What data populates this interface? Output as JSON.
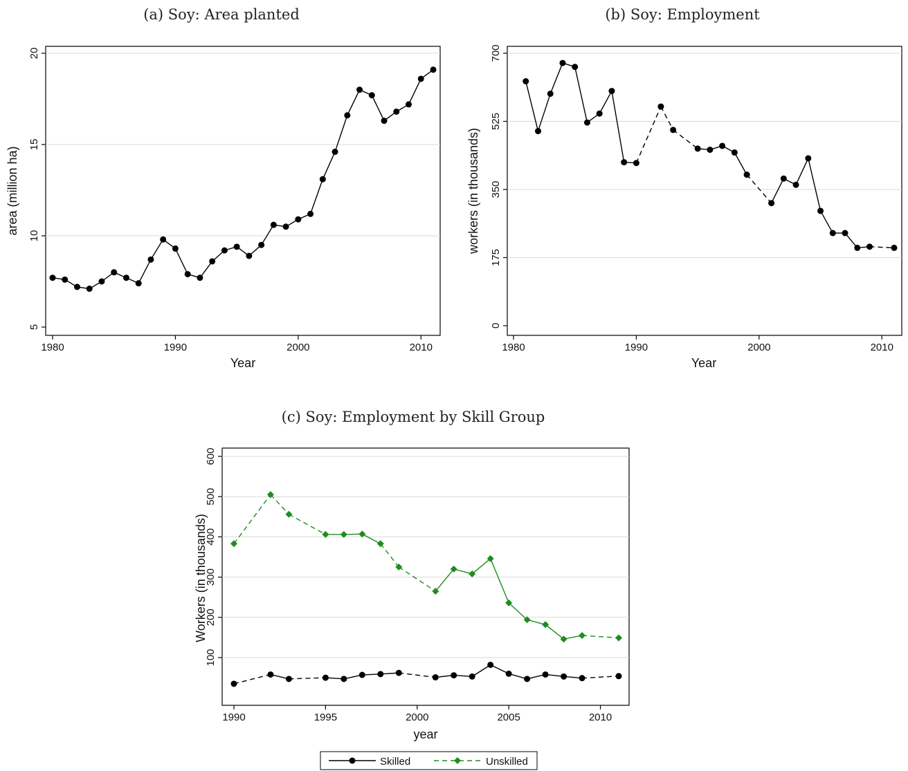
{
  "chart_data": [
    {
      "id": "a",
      "type": "line",
      "title": "(a) Soy: Area planted",
      "xlabel": "Year",
      "ylabel": "area (million ha)",
      "xlim": [
        1980,
        2011
      ],
      "ylim": [
        5,
        20
      ],
      "xticks": [
        1980,
        1990,
        2000,
        2010
      ],
      "yticks": [
        5,
        10,
        15,
        20
      ],
      "grid": true,
      "series": [
        {
          "color": "#000000",
          "marker": "circle",
          "x": [
            1980,
            1981,
            1982,
            1983,
            1984,
            1985,
            1986,
            1987,
            1988,
            1989,
            1990,
            1991,
            1992,
            1993,
            1994,
            1995,
            1996,
            1997,
            1998,
            1999,
            2000,
            2001,
            2002,
            2003,
            2004,
            2005,
            2006,
            2007,
            2008,
            2009,
            2010,
            2011
          ],
          "y": [
            7.7,
            7.6,
            7.2,
            7.1,
            7.5,
            8.0,
            7.7,
            7.4,
            8.7,
            9.8,
            9.3,
            7.9,
            7.7,
            8.6,
            9.2,
            9.4,
            8.9,
            9.5,
            10.6,
            10.5,
            10.9,
            11.2,
            13.1,
            14.6,
            16.6,
            18.0,
            17.7,
            16.3,
            16.8,
            17.2,
            18.6,
            19.1
          ],
          "dashed_segments": []
        }
      ]
    },
    {
      "id": "b",
      "type": "line",
      "title": "(b) Soy: Employment",
      "xlabel": "Year",
      "ylabel": "workers (in thousands)",
      "xlim": [
        1980,
        2011
      ],
      "ylim": [
        0,
        700
      ],
      "xticks": [
        1980,
        1990,
        2000,
        2010
      ],
      "yticks": [
        0,
        175,
        350,
        525,
        700
      ],
      "grid": true,
      "series": [
        {
          "color": "#000000",
          "marker": "circle",
          "x": [
            1981,
            1982,
            1983,
            1984,
            1985,
            1986,
            1987,
            1988,
            1989,
            1990,
            1992,
            1993,
            1995,
            1996,
            1997,
            1998,
            1999,
            2001,
            2002,
            2003,
            2004,
            2005,
            2006,
            2007,
            2008,
            2009,
            2011
          ],
          "y": [
            628,
            500,
            596,
            675,
            665,
            522,
            545,
            603,
            420,
            418,
            563,
            503,
            455,
            452,
            462,
            445,
            388,
            315,
            378,
            362,
            430,
            295,
            238,
            238,
            200,
            203,
            200
          ],
          "dashed_segments": [
            [
              1990,
              1992
            ],
            [
              1992,
              1993
            ],
            [
              1993,
              1995
            ],
            [
              1999,
              2001
            ],
            [
              2009,
              2011
            ]
          ]
        }
      ]
    },
    {
      "id": "c",
      "type": "line",
      "title": "(c) Soy: Employment by Skill Group",
      "xlabel": "year",
      "ylabel": "Workers (in thousands)",
      "xlim": [
        1990,
        2011
      ],
      "ylim": [
        0,
        620
      ],
      "xticks": [
        1990,
        1995,
        2000,
        2005,
        2010
      ],
      "yticks": [
        100,
        200,
        300,
        400,
        500,
        600
      ],
      "grid": true,
      "legend": "bottom",
      "series": [
        {
          "name": "Skilled",
          "color": "#000000",
          "marker": "circle",
          "x": [
            1990,
            1992,
            1993,
            1995,
            1996,
            1997,
            1998,
            1999,
            2001,
            2002,
            2003,
            2004,
            2005,
            2006,
            2007,
            2008,
            2009,
            2011
          ],
          "y": [
            35,
            58,
            47,
            50,
            47,
            57,
            59,
            62,
            51,
            56,
            53,
            82,
            60,
            47,
            58,
            53,
            49,
            54
          ],
          "dashed_segments": [
            [
              1990,
              1992
            ],
            [
              1993,
              1995
            ],
            [
              1999,
              2001
            ],
            [
              2009,
              2011
            ]
          ]
        },
        {
          "name": "Unskilled",
          "color": "#1e8c1e",
          "marker": "diamond",
          "x": [
            1990,
            1992,
            1993,
            1995,
            1996,
            1997,
            1998,
            1999,
            2001,
            2002,
            2003,
            2004,
            2005,
            2006,
            2007,
            2008,
            2009,
            2011
          ],
          "y": [
            383,
            505,
            456,
            406,
            406,
            407,
            383,
            325,
            265,
            320,
            308,
            346,
            236,
            194,
            182,
            146,
            155,
            149
          ],
          "dashed_segments": [
            [
              1990,
              1992
            ],
            [
              1992,
              1993
            ],
            [
              1993,
              1995
            ],
            [
              1998,
              1999
            ],
            [
              1999,
              2001
            ],
            [
              2009,
              2011
            ]
          ]
        }
      ]
    }
  ]
}
